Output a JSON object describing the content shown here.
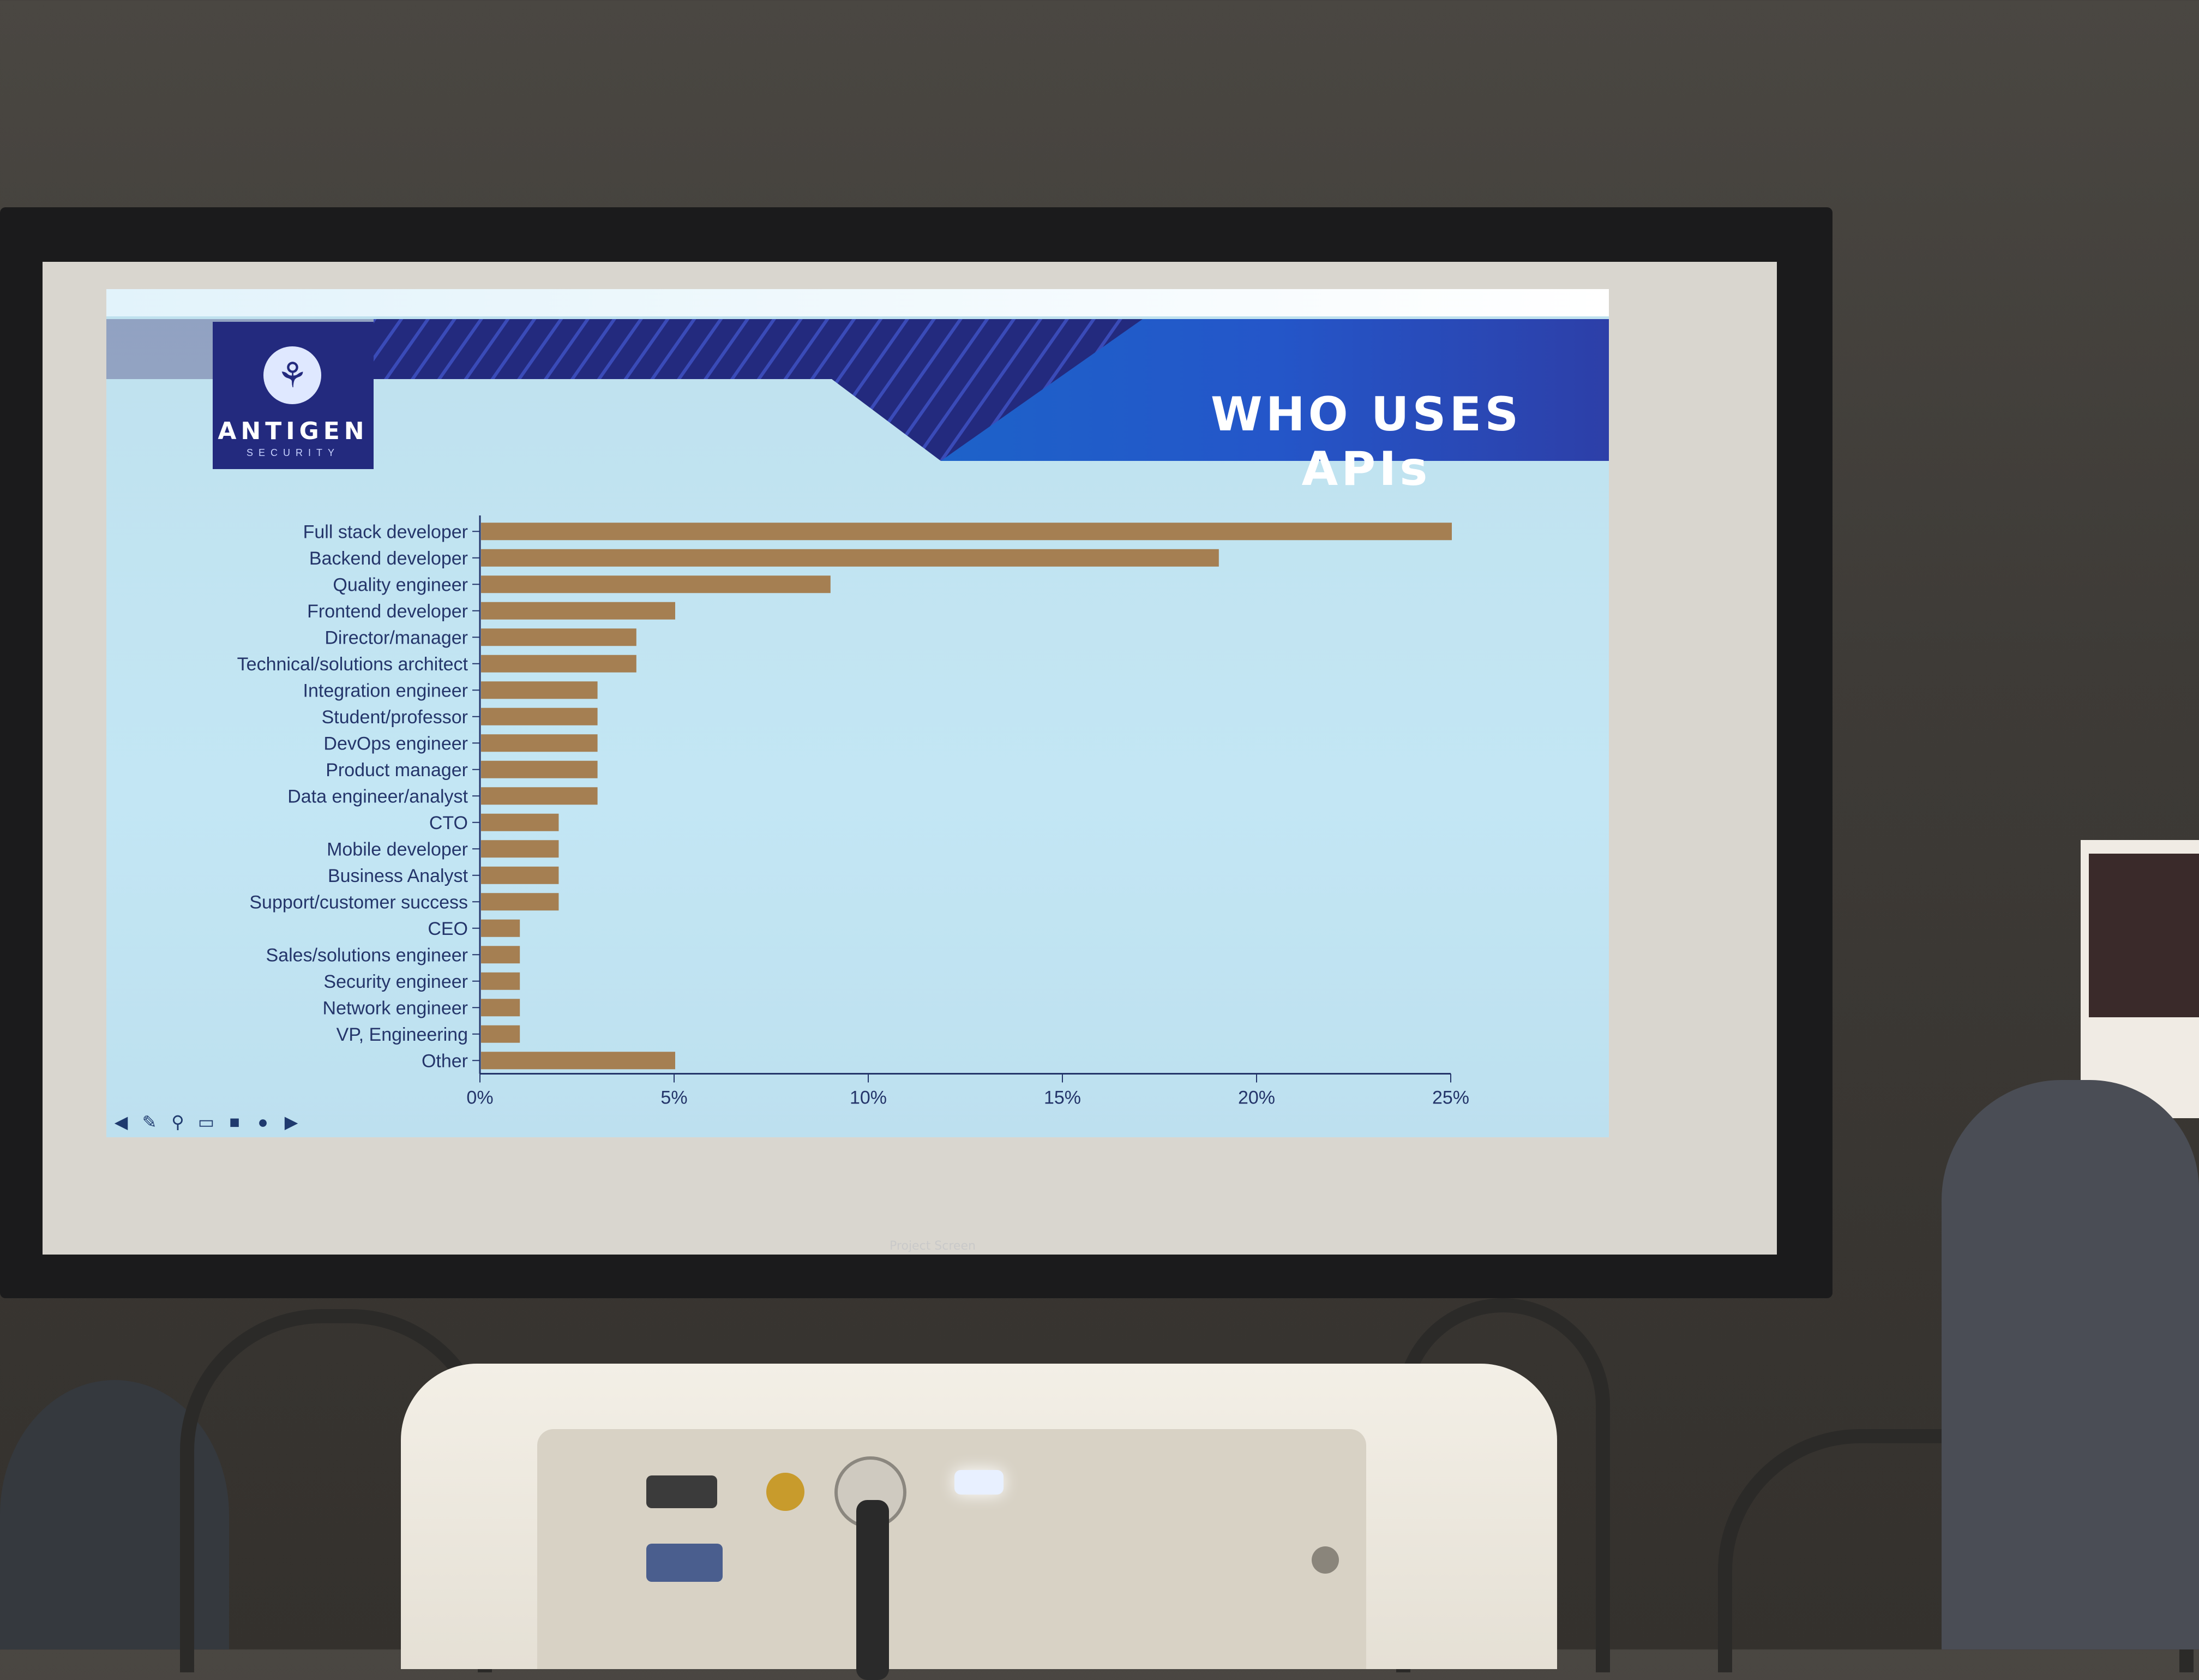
{
  "slide": {
    "logo_name": "ANTIGEN",
    "logo_sub": "SECURITY",
    "title": "WHO USES APIs"
  },
  "screen_brand": "Project Screen",
  "colors": {
    "bar": "#a57f52",
    "banner_dark": "#232a7e",
    "banner_blue": "#2b62d3",
    "slide_bg": "#c3e6f4",
    "axis_text": "#24356a"
  },
  "toolbar_icons": [
    "back-icon",
    "pen-icon",
    "zoom-icon",
    "captions-icon",
    "camera-icon",
    "more-icon",
    "forward-icon"
  ],
  "chart_data": {
    "type": "bar",
    "orientation": "horizontal",
    "title": "WHO USES APIs",
    "xlabel": "",
    "ylabel": "",
    "xlim": [
      0,
      25
    ],
    "grid": false,
    "x_tick_labels": [
      "0%",
      "5%",
      "10%",
      "15%",
      "20%",
      "25%"
    ],
    "categories": [
      "Full stack developer",
      "Backend developer",
      "Quality engineer",
      "Frontend developer",
      "Director/manager",
      "Technical/solutions architect",
      "Integration engineer",
      "Student/professor",
      "DevOps engineer",
      "Product manager",
      "Data engineer/analyst",
      "CTO",
      "Mobile developer",
      "Business Analyst",
      "Support/customer success",
      "CEO",
      "Sales/solutions engineer",
      "Security engineer",
      "Network engineer",
      "VP, Engineering",
      "Other"
    ],
    "values": [
      25,
      19,
      9,
      5,
      4,
      4,
      3,
      3,
      3,
      3,
      3,
      2,
      2,
      2,
      2,
      1,
      1,
      1,
      1,
      1,
      5
    ]
  }
}
